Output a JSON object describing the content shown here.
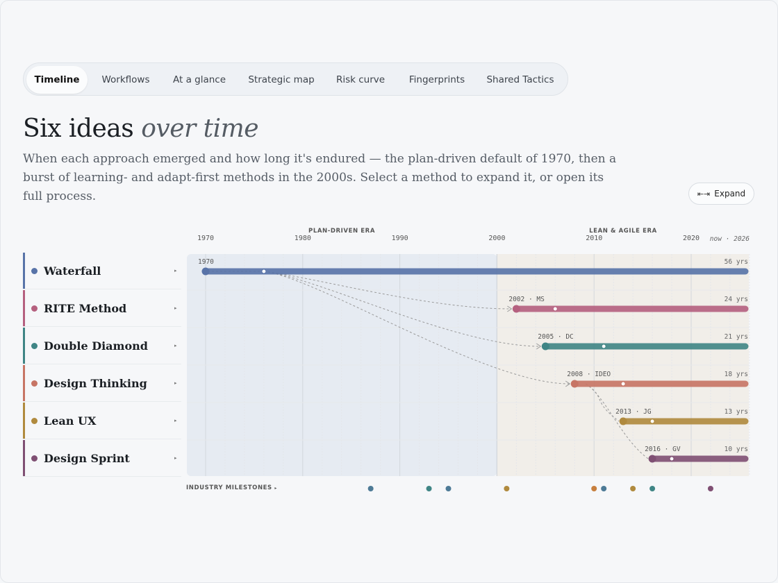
{
  "tabs": [
    "Timeline",
    "Workflows",
    "At a glance",
    "Strategic map",
    "Risk curve",
    "Fingerprints",
    "Shared Tactics"
  ],
  "title": {
    "main": "Six ideas",
    "emphasis": "over time"
  },
  "description": "When each approach emerged and how long it's endured — the plan-driven default of 1970, then a burst of learning- and adapt-first methods in the 2000s. Select a method to expand it, or open its full process.",
  "expand_button": {
    "icon": "⇤⇥",
    "label": "Expand"
  },
  "eras": {
    "plan_driven": "PLAN-DRIVEN ERA",
    "lean_agile": "LEAN & AGILE ERA"
  },
  "now_label": "now · 2026",
  "milestones_label": "INDUSTRY MILESTONES",
  "chart_data": {
    "type": "timeline",
    "x_range": [
      1968,
      2026
    ],
    "ticks": [
      "1970",
      "1980",
      "1990",
      "2000",
      "2010",
      "2020"
    ],
    "now": 2026,
    "methods": [
      {
        "name": "Waterfall",
        "start": 1970,
        "tag": "1970",
        "duration": "56 yrs",
        "color": "#5873a8",
        "marker": 1976
      },
      {
        "name": "RITE Method",
        "start": 2002,
        "tag": "2002 · MS",
        "duration": "24 yrs",
        "color": "#b5607f",
        "marker": 2006
      },
      {
        "name": "Double Diamond",
        "start": 2005,
        "tag": "2005 · DC",
        "duration": "21 yrs",
        "color": "#3f8585",
        "marker": 2011
      },
      {
        "name": "Design Thinking",
        "start": 2008,
        "tag": "2008 · IDEO",
        "duration": "18 yrs",
        "color": "#c77565",
        "marker": 2013
      },
      {
        "name": "Lean UX",
        "start": 2013,
        "tag": "2013 · JG",
        "duration": "13 yrs",
        "color": "#b08a3e",
        "marker": 2016
      },
      {
        "name": "Design Sprint",
        "start": 2016,
        "tag": "2016 · GV",
        "duration": "10 yrs",
        "color": "#7f4f73",
        "marker": 2018
      }
    ],
    "milestones": [
      {
        "year": 1987,
        "color": "#4d7a96"
      },
      {
        "year": 1993,
        "color": "#3f8585"
      },
      {
        "year": 1995,
        "color": "#4d7a96"
      },
      {
        "year": 2001,
        "color": "#b08a3e"
      },
      {
        "year": 2010,
        "color": "#c77f3e"
      },
      {
        "year": 2011,
        "color": "#4d7a96"
      },
      {
        "year": 2014,
        "color": "#b08a3e"
      },
      {
        "year": 2016,
        "color": "#3f8585"
      },
      {
        "year": 2022,
        "color": "#7f4f73"
      }
    ]
  }
}
